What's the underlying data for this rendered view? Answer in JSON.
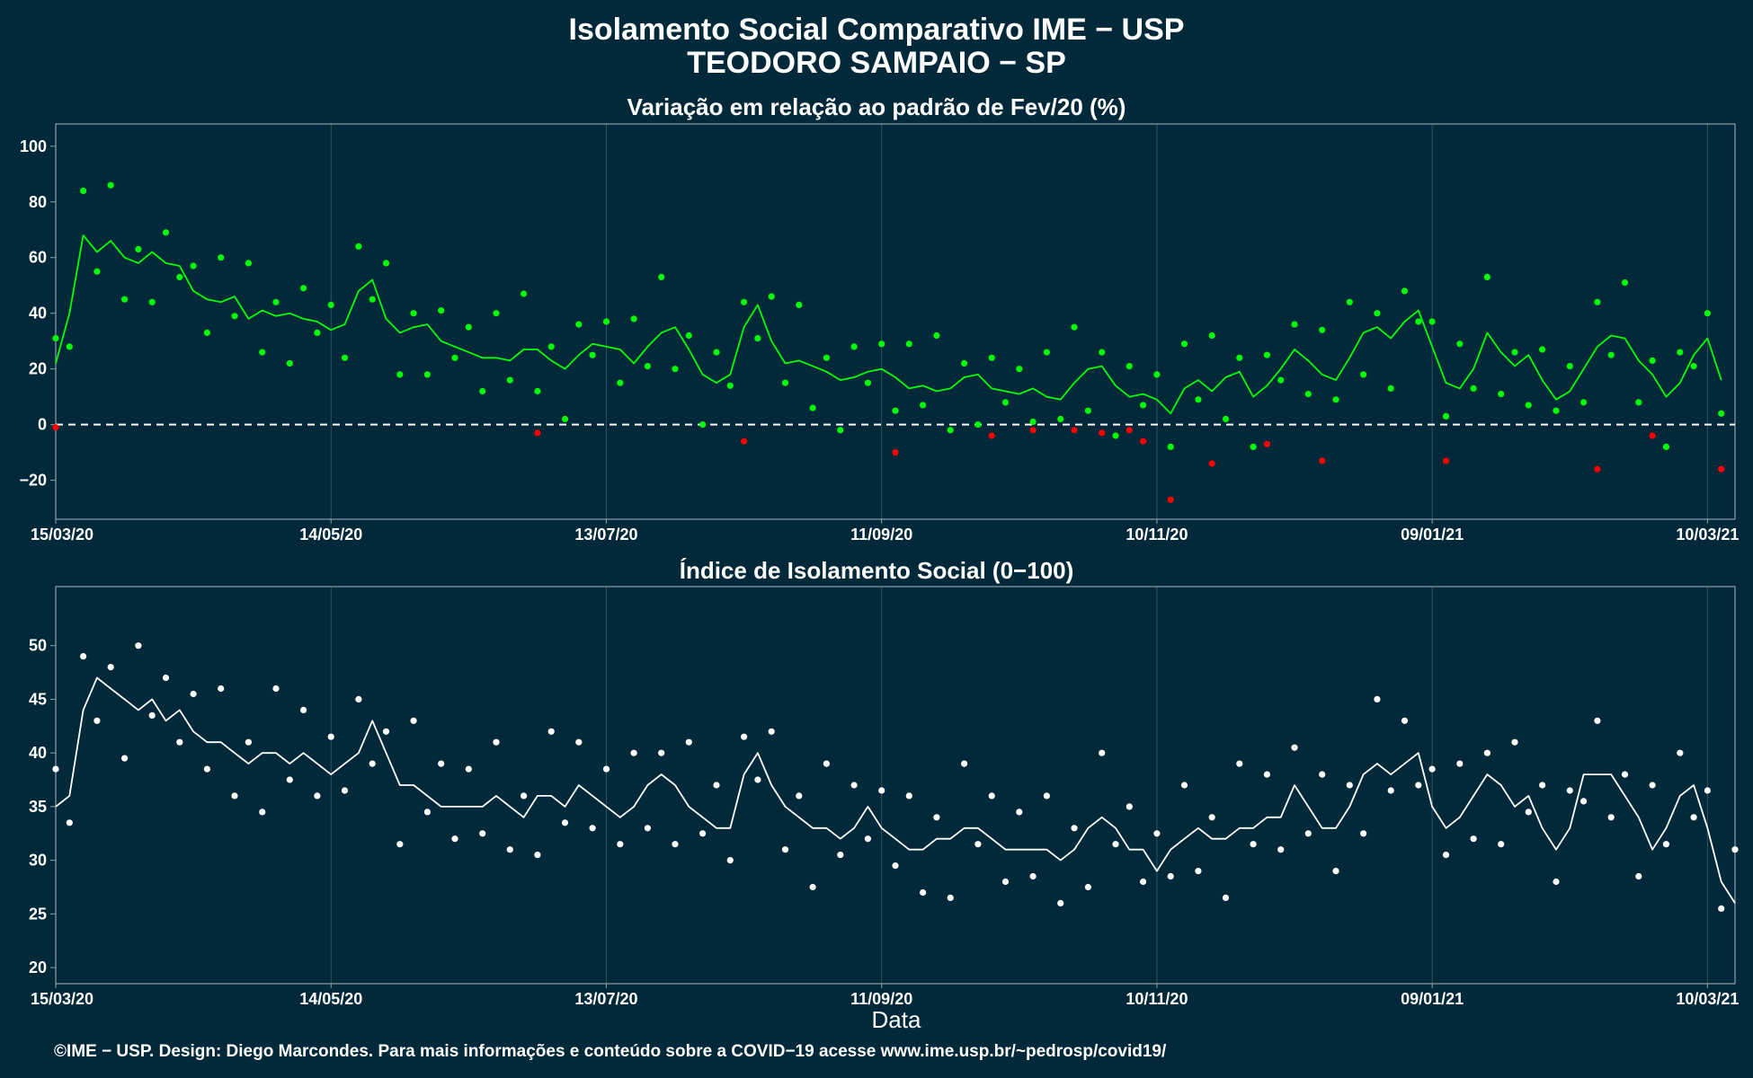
{
  "title_line1": "Isolamento Social Comparativo IME − USP",
  "title_line2": "TEODORO SAMPAIO − SP",
  "xlabel": "Data",
  "footer": "©IME − USP. Design: Diego Marcondes. Para mais informações e conteúdo sobre a COVID−19 acesse www.ime.usp.br/~pedrosp/covid19/",
  "colors": {
    "background": "#01293a",
    "positive": "#00ff00",
    "negative": "#ff0000",
    "index": "#ffffff",
    "grid": "#35525f",
    "frame": "#8ea1a8"
  },
  "chart_data": [
    {
      "type": "scatter",
      "title": "Variação em relação ao padrão de Fev/20 (%)",
      "x_range": [
        "2020-03-15",
        "2021-03-16"
      ],
      "x_ticks": [
        "15/03/20",
        "14/05/20",
        "13/07/20",
        "11/09/20",
        "10/11/20",
        "09/01/21",
        "10/03/21"
      ],
      "x_tick_dates": [
        "2020-03-15",
        "2020-05-14",
        "2020-07-13",
        "2020-09-11",
        "2020-11-10",
        "2021-01-09",
        "2021-03-10"
      ],
      "ylim": [
        -34,
        108
      ],
      "y_ticks": [
        -20,
        0,
        20,
        40,
        60,
        80,
        100
      ],
      "y_tick_labels": [
        "−20",
        "0",
        "20",
        "40",
        "60",
        "80",
        "100"
      ],
      "reference_line": 0,
      "grid": true,
      "series": [
        {
          "x": [
            "2020-03-15",
            "2020-03-18",
            "2020-03-21",
            "2020-03-24",
            "2020-03-27",
            "2020-03-30",
            "2020-04-02",
            "2020-04-05",
            "2020-04-08",
            "2020-04-11",
            "2020-04-14",
            "2020-04-17",
            "2020-04-20",
            "2020-04-23",
            "2020-04-26",
            "2020-04-29",
            "2020-05-02",
            "2020-05-05",
            "2020-05-08",
            "2020-05-11",
            "2020-05-14",
            "2020-05-17",
            "2020-05-20",
            "2020-05-23",
            "2020-05-26",
            "2020-05-29",
            "2020-06-01",
            "2020-06-04",
            "2020-06-07",
            "2020-06-10",
            "2020-06-13",
            "2020-06-16",
            "2020-06-19",
            "2020-06-22",
            "2020-06-25",
            "2020-06-28",
            "2020-07-01",
            "2020-07-04",
            "2020-07-07",
            "2020-07-10",
            "2020-07-13",
            "2020-07-16",
            "2020-07-19",
            "2020-07-22",
            "2020-07-25",
            "2020-07-28",
            "2020-07-31",
            "2020-08-03",
            "2020-08-06",
            "2020-08-09",
            "2020-08-12",
            "2020-08-15",
            "2020-08-18",
            "2020-08-21",
            "2020-08-24",
            "2020-08-27",
            "2020-08-30",
            "2020-09-02",
            "2020-09-05",
            "2020-09-08",
            "2020-09-11",
            "2020-09-14",
            "2020-09-17",
            "2020-09-20",
            "2020-09-23",
            "2020-09-26",
            "2020-09-29",
            "2020-10-02",
            "2020-10-05",
            "2020-10-08",
            "2020-10-11",
            "2020-10-14",
            "2020-10-17",
            "2020-10-20",
            "2020-10-23",
            "2020-10-26",
            "2020-10-29",
            "2020-11-01",
            "2020-11-04",
            "2020-11-07",
            "2020-11-10",
            "2020-11-13",
            "2020-11-16",
            "2020-11-19",
            "2020-11-22",
            "2020-11-25",
            "2020-11-28",
            "2020-12-01",
            "2020-12-04",
            "2020-12-07",
            "2020-12-10",
            "2020-12-13",
            "2020-12-16",
            "2020-12-19",
            "2020-12-22",
            "2020-12-25",
            "2020-12-28",
            "2020-12-31",
            "2021-01-03",
            "2021-01-06",
            "2021-01-09",
            "2021-01-12",
            "2021-01-15",
            "2021-01-18",
            "2021-01-21",
            "2021-01-24",
            "2021-01-27",
            "2021-01-30",
            "2021-02-02",
            "2021-02-05",
            "2021-02-08",
            "2021-02-11",
            "2021-02-14",
            "2021-02-17",
            "2021-02-20",
            "2021-02-23",
            "2021-02-26",
            "2021-03-01",
            "2021-03-04",
            "2021-03-07",
            "2021-03-10",
            "2021-03-13"
          ],
          "y": [
            22,
            40,
            68,
            62,
            66,
            60,
            58,
            62,
            58,
            57,
            48,
            45,
            44,
            46,
            38,
            41,
            39,
            40,
            38,
            37,
            34,
            36,
            48,
            52,
            38,
            33,
            35,
            36,
            30,
            28,
            26,
            24,
            24,
            23,
            27,
            27,
            23,
            20,
            25,
            29,
            28,
            27,
            22,
            28,
            33,
            35,
            27,
            18,
            15,
            18,
            35,
            43,
            30,
            22,
            23,
            21,
            19,
            16,
            17,
            19,
            20,
            17,
            13,
            14,
            12,
            13,
            17,
            18,
            13,
            12,
            11,
            13,
            10,
            9,
            15,
            20,
            21,
            14,
            10,
            11,
            9,
            4,
            13,
            16,
            12,
            17,
            19,
            10,
            14,
            20,
            27,
            23,
            18,
            16,
            24,
            33,
            35,
            31,
            37,
            41,
            28,
            15,
            13,
            20,
            33,
            26,
            21,
            25,
            16,
            9,
            12,
            20,
            28,
            32,
            31,
            23,
            18,
            10,
            15,
            25,
            31,
            16
          ]
        }
      ],
      "negative_points": {
        "x": [
          "2020-03-15",
          "2020-06-28",
          "2020-08-12",
          "2020-09-14",
          "2020-10-05",
          "2020-10-14",
          "2020-10-23",
          "2020-10-29",
          "2020-11-04",
          "2020-11-07",
          "2020-11-13",
          "2020-11-22",
          "2020-12-04",
          "2020-12-16",
          "2021-01-12",
          "2021-02-14",
          "2021-02-26",
          "2021-03-13"
        ],
        "y": [
          -1,
          -3,
          -6,
          -10,
          -4,
          -2,
          -2,
          -3,
          -2,
          -6,
          -27,
          -14,
          -7,
          -13,
          -13,
          -16,
          -4,
          -16
        ]
      }
    },
    {
      "type": "scatter",
      "title": "Índice de Isolamento Social (0−100)",
      "x_range": [
        "2020-03-15",
        "2021-03-16"
      ],
      "x_ticks": [
        "15/03/20",
        "14/05/20",
        "13/07/20",
        "11/09/20",
        "10/11/20",
        "09/01/21",
        "10/03/21"
      ],
      "x_tick_dates": [
        "2020-03-15",
        "2020-05-14",
        "2020-07-13",
        "2020-09-11",
        "2020-11-10",
        "2021-01-09",
        "2021-03-10"
      ],
      "xlabel": "Data",
      "ylim": [
        18.5,
        55.5
      ],
      "y_ticks": [
        20,
        25,
        30,
        35,
        40,
        45,
        50
      ],
      "grid": true,
      "series": [
        {
          "x": [
            "2020-03-15",
            "2020-03-18",
            "2020-03-21",
            "2020-03-24",
            "2020-03-27",
            "2020-03-30",
            "2020-04-02",
            "2020-04-05",
            "2020-04-08",
            "2020-04-11",
            "2020-04-14",
            "2020-04-17",
            "2020-04-20",
            "2020-04-23",
            "2020-04-26",
            "2020-04-29",
            "2020-05-02",
            "2020-05-05",
            "2020-05-08",
            "2020-05-11",
            "2020-05-14",
            "2020-05-17",
            "2020-05-20",
            "2020-05-23",
            "2020-05-26",
            "2020-05-29",
            "2020-06-01",
            "2020-06-04",
            "2020-06-07",
            "2020-06-10",
            "2020-06-13",
            "2020-06-16",
            "2020-06-19",
            "2020-06-22",
            "2020-06-25",
            "2020-06-28",
            "2020-07-01",
            "2020-07-04",
            "2020-07-07",
            "2020-07-10",
            "2020-07-13",
            "2020-07-16",
            "2020-07-19",
            "2020-07-22",
            "2020-07-25",
            "2020-07-28",
            "2020-07-31",
            "2020-08-03",
            "2020-08-06",
            "2020-08-09",
            "2020-08-12",
            "2020-08-15",
            "2020-08-18",
            "2020-08-21",
            "2020-08-24",
            "2020-08-27",
            "2020-08-30",
            "2020-09-02",
            "2020-09-05",
            "2020-09-08",
            "2020-09-11",
            "2020-09-14",
            "2020-09-17",
            "2020-09-20",
            "2020-09-23",
            "2020-09-26",
            "2020-09-29",
            "2020-10-02",
            "2020-10-05",
            "2020-10-08",
            "2020-10-11",
            "2020-10-14",
            "2020-10-17",
            "2020-10-20",
            "2020-10-23",
            "2020-10-26",
            "2020-10-29",
            "2020-11-01",
            "2020-11-04",
            "2020-11-07",
            "2020-11-10",
            "2020-11-13",
            "2020-11-16",
            "2020-11-19",
            "2020-11-22",
            "2020-11-25",
            "2020-11-28",
            "2020-12-01",
            "2020-12-04",
            "2020-12-07",
            "2020-12-10",
            "2020-12-13",
            "2020-12-16",
            "2020-12-19",
            "2020-12-22",
            "2020-12-25",
            "2020-12-28",
            "2020-12-31",
            "2021-01-03",
            "2021-01-06",
            "2021-01-09",
            "2021-01-12",
            "2021-01-15",
            "2021-01-18",
            "2021-01-21",
            "2021-01-24",
            "2021-01-27",
            "2021-01-30",
            "2021-02-02",
            "2021-02-05",
            "2021-02-08",
            "2021-02-11",
            "2021-02-14",
            "2021-02-17",
            "2021-02-20",
            "2021-02-23",
            "2021-02-26",
            "2021-03-01",
            "2021-03-04",
            "2021-03-07",
            "2021-03-10",
            "2021-03-13",
            "2021-03-16"
          ],
          "y": [
            35,
            36,
            44,
            47,
            46,
            45,
            44,
            45,
            43,
            44,
            42,
            41,
            41,
            40,
            39,
            40,
            40,
            39,
            40,
            39,
            38,
            39,
            40,
            43,
            40,
            37,
            37,
            36,
            35,
            35,
            35,
            35,
            36,
            35,
            34,
            36,
            36,
            35,
            37,
            36,
            35,
            34,
            35,
            37,
            38,
            37,
            35,
            34,
            33,
            33,
            38,
            40,
            37,
            35,
            34,
            33,
            33,
            32,
            33,
            35,
            33,
            32,
            31,
            31,
            32,
            32,
            33,
            33,
            32,
            31,
            31,
            31,
            31,
            30,
            31,
            33,
            34,
            33,
            31,
            31,
            29,
            31,
            32,
            33,
            32,
            32,
            33,
            33,
            34,
            34,
            37,
            35,
            33,
            33,
            35,
            38,
            39,
            38,
            39,
            40,
            35,
            33,
            34,
            36,
            38,
            37,
            35,
            36,
            33,
            31,
            33,
            38,
            38,
            38,
            36,
            34,
            31,
            33,
            36,
            37,
            33,
            28,
            26
          ]
        }
      ]
    }
  ]
}
